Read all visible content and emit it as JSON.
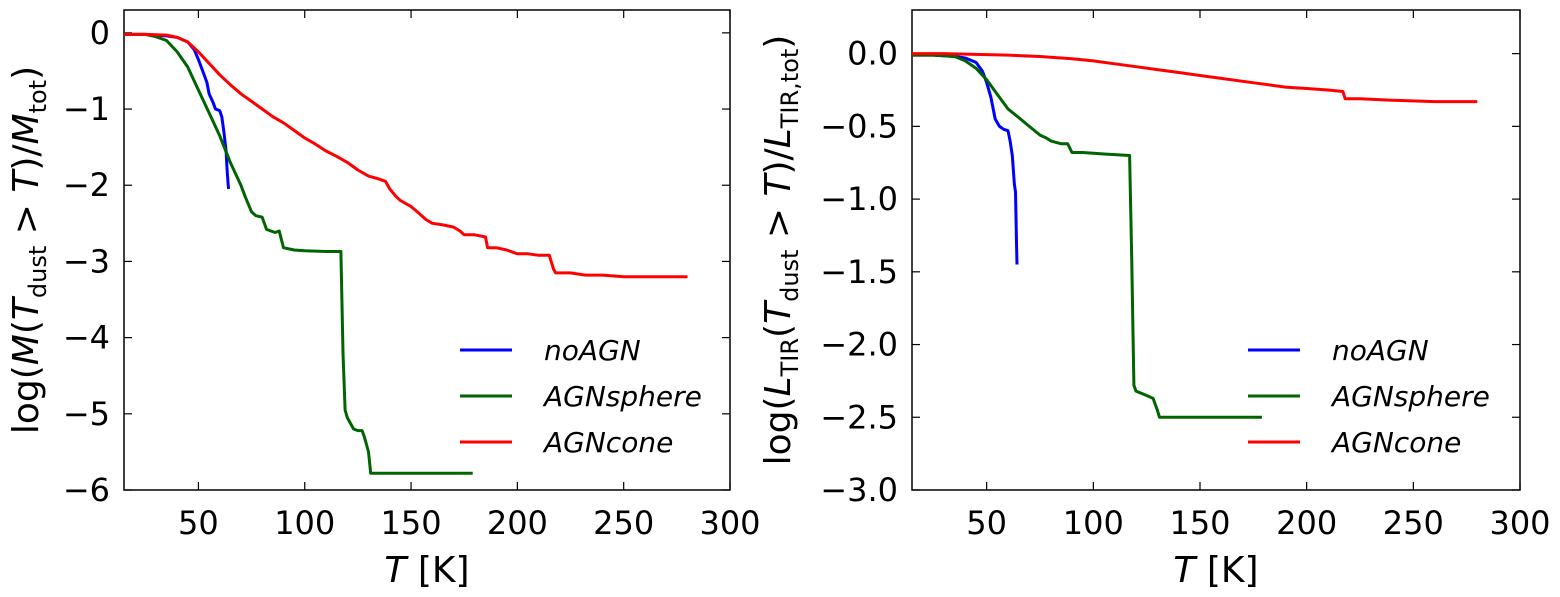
{
  "chart_data": [
    {
      "type": "line",
      "id": "left",
      "title": "",
      "xlabel_italic": "T",
      "xlabel_rest": " [K]",
      "ylabel": "log(M(T_dust > T)/M_tot)",
      "ylabel_parts": [
        "log(",
        "M",
        "(",
        "T",
        "dust",
        " > ",
        "T",
        ")/",
        "M",
        "tot",
        ")"
      ],
      "xlim": [
        15,
        300
      ],
      "ylim": [
        -6,
        0.3
      ],
      "xticks": [
        50,
        100,
        150,
        200,
        250,
        300
      ],
      "xtick_labels": [
        "50",
        "100",
        "150",
        "200",
        "250",
        "300"
      ],
      "yticks": [
        0,
        -1,
        -2,
        -3,
        -4,
        -5,
        -6
      ],
      "ytick_labels": [
        "0",
        "−1",
        "−2",
        "−3",
        "−4",
        "−5",
        "−6"
      ],
      "legend_position": "lower-right",
      "series": [
        {
          "name": "noAGN",
          "color": "#0000ff",
          "x": [
            15,
            25,
            35,
            40,
            45,
            48,
            50,
            52,
            54,
            55,
            57,
            58,
            60,
            61,
            62,
            63,
            63.5,
            64,
            64.2
          ],
          "y": [
            -0.02,
            -0.02,
            -0.04,
            -0.06,
            -0.12,
            -0.22,
            -0.35,
            -0.5,
            -0.65,
            -0.8,
            -0.92,
            -1.0,
            -1.02,
            -1.1,
            -1.3,
            -1.55,
            -1.8,
            -2.0,
            -2.05
          ]
        },
        {
          "name": "AGNsphere",
          "color": "#006400",
          "x": [
            15,
            25,
            30,
            35,
            40,
            45,
            50,
            55,
            60,
            65,
            70,
            72,
            75,
            77,
            80,
            82,
            86,
            88,
            90,
            95,
            100,
            110,
            117,
            118,
            119,
            120,
            123,
            125,
            127,
            128,
            130,
            131,
            135,
            150,
            165,
            179
          ],
          "y": [
            -0.02,
            -0.02,
            -0.05,
            -0.1,
            -0.25,
            -0.45,
            -0.75,
            -1.05,
            -1.35,
            -1.7,
            -2.0,
            -2.15,
            -2.35,
            -2.4,
            -2.42,
            -2.58,
            -2.62,
            -2.6,
            -2.82,
            -2.85,
            -2.86,
            -2.87,
            -2.87,
            -4.2,
            -4.95,
            -5.05,
            -5.2,
            -5.22,
            -5.22,
            -5.3,
            -5.5,
            -5.78,
            -5.78,
            -5.78,
            -5.78,
            -5.78
          ]
        },
        {
          "name": "AGNcone",
          "color": "#ff0000",
          "x": [
            15,
            25,
            35,
            40,
            45,
            50,
            55,
            60,
            65,
            70,
            75,
            80,
            85,
            90,
            95,
            100,
            105,
            110,
            115,
            120,
            125,
            130,
            135,
            138,
            140,
            143,
            145,
            150,
            153,
            157,
            160,
            165,
            170,
            173,
            175,
            180,
            185,
            186,
            190,
            195,
            198,
            200,
            205,
            210,
            215,
            217,
            218,
            225,
            232,
            240,
            250,
            260,
            270,
            280
          ],
          "y": [
            -0.02,
            -0.02,
            -0.03,
            -0.06,
            -0.12,
            -0.25,
            -0.4,
            -0.55,
            -0.68,
            -0.8,
            -0.9,
            -1.0,
            -1.1,
            -1.18,
            -1.28,
            -1.38,
            -1.46,
            -1.55,
            -1.62,
            -1.7,
            -1.8,
            -1.88,
            -1.92,
            -1.95,
            -2.05,
            -2.15,
            -2.2,
            -2.28,
            -2.35,
            -2.45,
            -2.5,
            -2.52,
            -2.55,
            -2.6,
            -2.65,
            -2.65,
            -2.68,
            -2.82,
            -2.82,
            -2.85,
            -2.88,
            -2.9,
            -2.9,
            -2.92,
            -2.92,
            -3.1,
            -3.15,
            -3.15,
            -3.18,
            -3.18,
            -3.2,
            -3.2,
            -3.2,
            -3.2
          ]
        }
      ]
    },
    {
      "type": "line",
      "id": "right",
      "title": "",
      "xlabel_italic": "T",
      "xlabel_rest": " [K]",
      "ylabel": "log(L_TIR(T_dust > T)/L_TIR,tot)",
      "ylabel_parts": [
        "log(",
        "L",
        "TIR",
        "(",
        "T",
        "dust",
        " > ",
        "T",
        ")/",
        "L",
        "TIR,tot",
        ")"
      ],
      "xlim": [
        15,
        300
      ],
      "ylim": [
        -3.0,
        0.3
      ],
      "xticks": [
        50,
        100,
        150,
        200,
        250,
        300
      ],
      "xtick_labels": [
        "50",
        "100",
        "150",
        "200",
        "250",
        "300"
      ],
      "yticks": [
        0.0,
        -0.5,
        -1.0,
        -1.5,
        -2.0,
        -2.5,
        -3.0
      ],
      "ytick_labels": [
        "0.0",
        "−0.5",
        "−1.0",
        "−1.5",
        "−2.0",
        "−2.5",
        "−3.0"
      ],
      "legend_position": "lower-right",
      "series": [
        {
          "name": "noAGN",
          "color": "#0000ff",
          "x": [
            15,
            25,
            35,
            40,
            45,
            48,
            50,
            52,
            54,
            56,
            58,
            60,
            61,
            62,
            63,
            63.5,
            64,
            64.2
          ],
          "y": [
            -0.01,
            -0.01,
            -0.02,
            -0.03,
            -0.06,
            -0.12,
            -0.2,
            -0.3,
            -0.45,
            -0.5,
            -0.52,
            -0.53,
            -0.6,
            -0.7,
            -0.9,
            -0.95,
            -1.3,
            -1.45
          ]
        },
        {
          "name": "AGNsphere",
          "color": "#006400",
          "x": [
            15,
            25,
            35,
            40,
            45,
            50,
            55,
            60,
            65,
            70,
            75,
            78,
            80,
            85,
            88,
            90,
            95,
            105,
            117,
            118,
            119,
            120,
            125,
            128,
            130,
            131,
            135,
            150,
            165,
            179
          ],
          "y": [
            -0.01,
            -0.01,
            -0.02,
            -0.05,
            -0.1,
            -0.18,
            -0.28,
            -0.38,
            -0.44,
            -0.5,
            -0.56,
            -0.58,
            -0.6,
            -0.62,
            -0.62,
            -0.68,
            -0.68,
            -0.69,
            -0.7,
            -1.4,
            -2.28,
            -2.32,
            -2.35,
            -2.37,
            -2.45,
            -2.5,
            -2.5,
            -2.5,
            -2.5,
            -2.5
          ]
        },
        {
          "name": "AGNcone",
          "color": "#ff0000",
          "x": [
            15,
            30,
            45,
            60,
            75,
            90,
            100,
            110,
            120,
            130,
            140,
            150,
            160,
            170,
            180,
            190,
            200,
            210,
            217,
            218,
            225,
            240,
            260,
            280
          ],
          "y": [
            0.0,
            0.0,
            -0.005,
            -0.01,
            -0.02,
            -0.035,
            -0.05,
            -0.07,
            -0.09,
            -0.11,
            -0.13,
            -0.15,
            -0.17,
            -0.19,
            -0.21,
            -0.23,
            -0.24,
            -0.25,
            -0.26,
            -0.31,
            -0.31,
            -0.32,
            -0.33,
            -0.33
          ]
        }
      ]
    }
  ]
}
